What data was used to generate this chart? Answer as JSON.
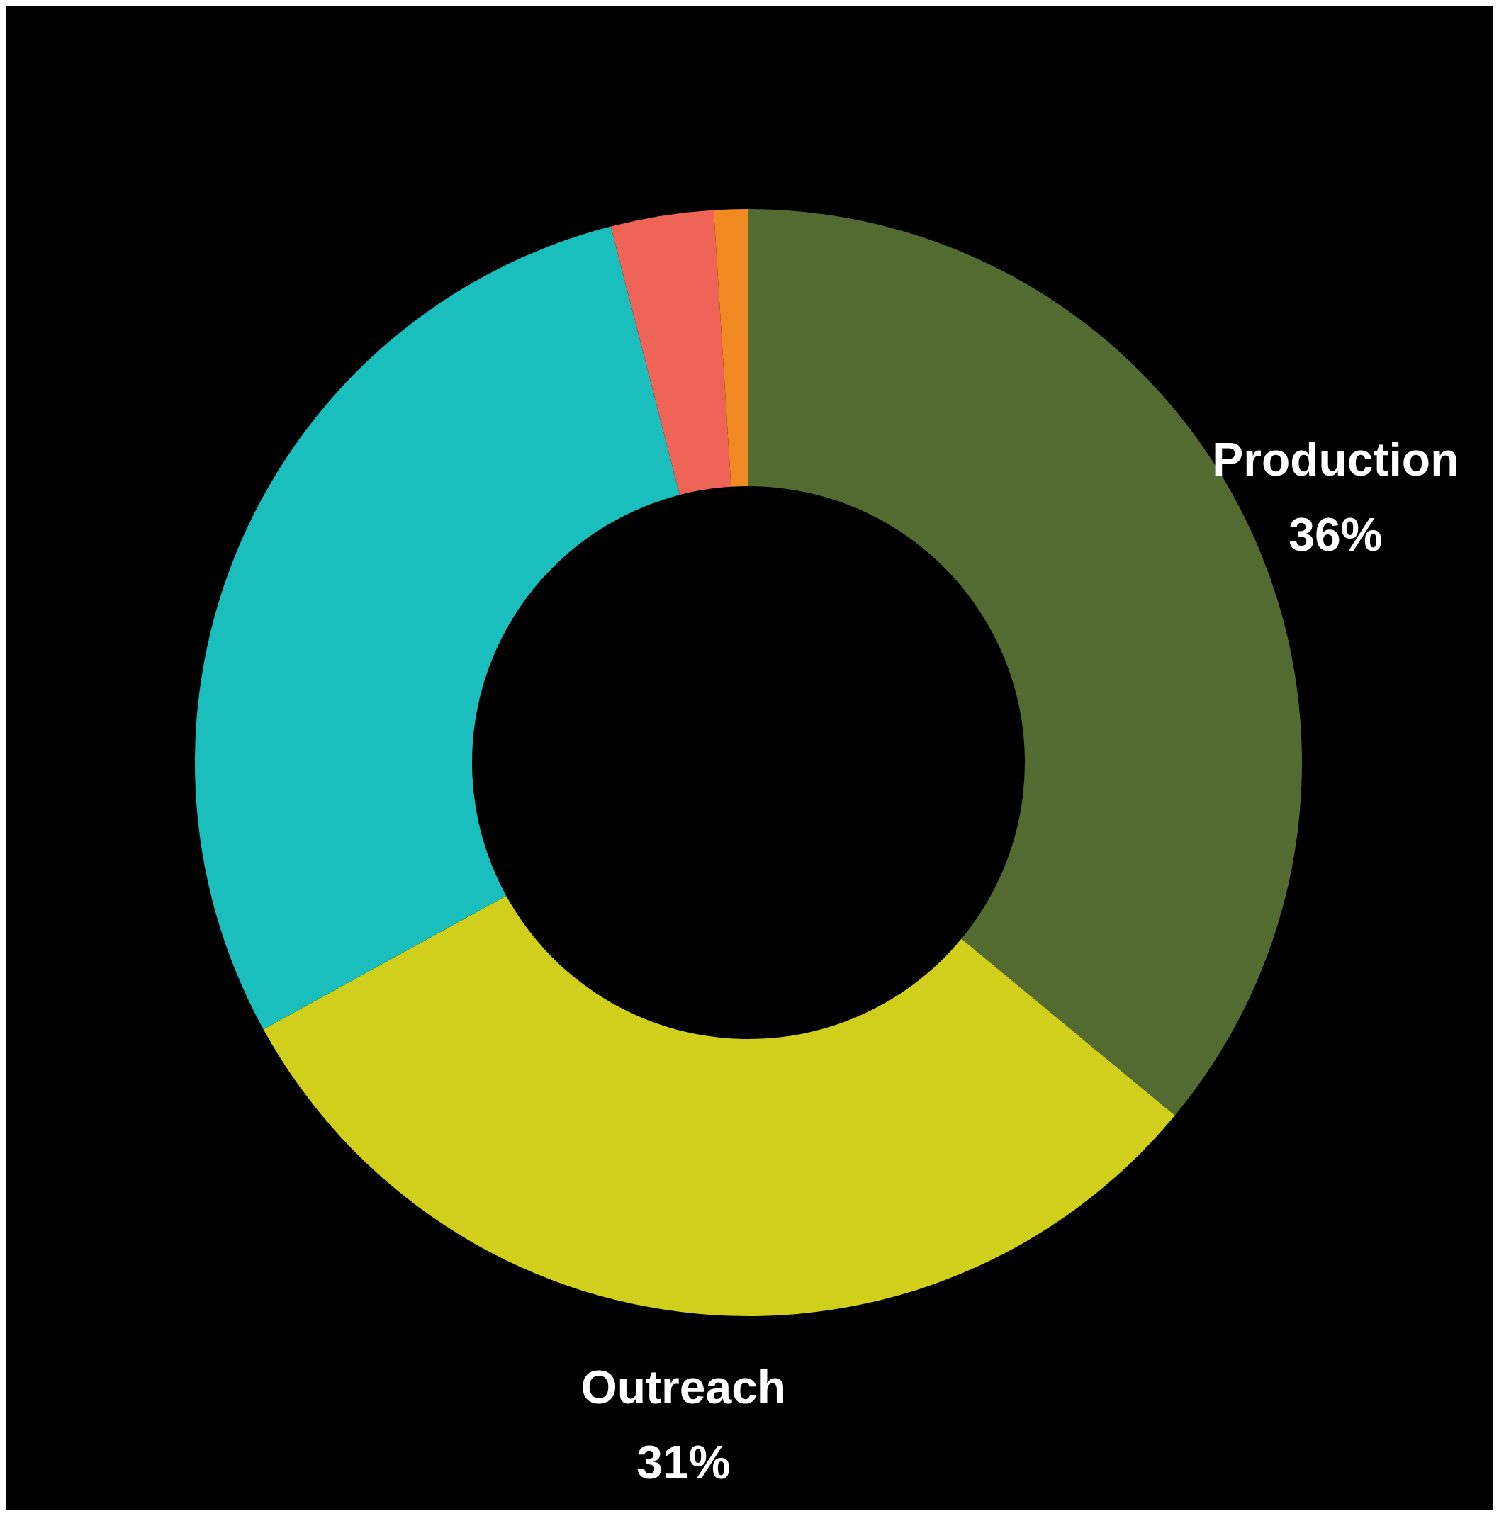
{
  "chart_data": {
    "type": "donut",
    "categories": [
      "Production",
      "Outreach",
      null,
      null,
      null
    ],
    "values": [
      36,
      31,
      29,
      3,
      1
    ],
    "colors": [
      "#536b30",
      "#d0d01c",
      "#1abfbd",
      "#ee6557",
      "#f18a22"
    ],
    "value_labels": [
      "36%",
      "31%",
      null,
      null,
      null
    ]
  }
}
